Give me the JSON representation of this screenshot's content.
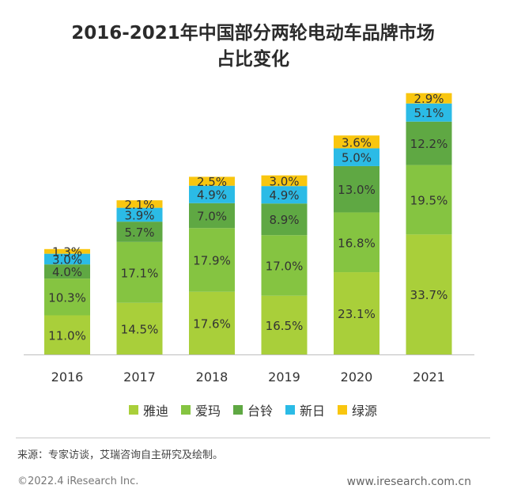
{
  "title": {
    "line1": "2016-2021年中国部分两轮电动车品牌市场",
    "line2": "占比变化"
  },
  "chart_data": {
    "type": "bar",
    "stacked": true,
    "categories": [
      "2016",
      "2017",
      "2018",
      "2019",
      "2020",
      "2021"
    ],
    "series": [
      {
        "name": "雅迪",
        "color": "#a9cf3a",
        "values": [
          11.0,
          14.5,
          17.6,
          16.5,
          23.1,
          33.7
        ]
      },
      {
        "name": "爱玛",
        "color": "#85c441",
        "values": [
          10.3,
          17.1,
          17.9,
          17.0,
          16.8,
          19.5
        ]
      },
      {
        "name": "台铃",
        "color": "#5fa843",
        "values": [
          4.0,
          5.7,
          7.0,
          8.9,
          13.0,
          12.2
        ]
      },
      {
        "name": "新日",
        "color": "#2bbbe6",
        "values": [
          3.0,
          3.9,
          4.9,
          4.9,
          5.0,
          5.1
        ]
      },
      {
        "name": "绿源",
        "color": "#f9c60f",
        "values": [
          1.3,
          2.1,
          2.5,
          3.0,
          3.6,
          2.9
        ]
      }
    ],
    "unit": "%",
    "legend": "bottom",
    "grid": false
  },
  "footer": {
    "source": "来源：专家访谈，艾瑞咨询自主研究及绘制。",
    "copyright": "©2022.4 iResearch Inc.",
    "website": "www.iresearch.com.cn"
  }
}
